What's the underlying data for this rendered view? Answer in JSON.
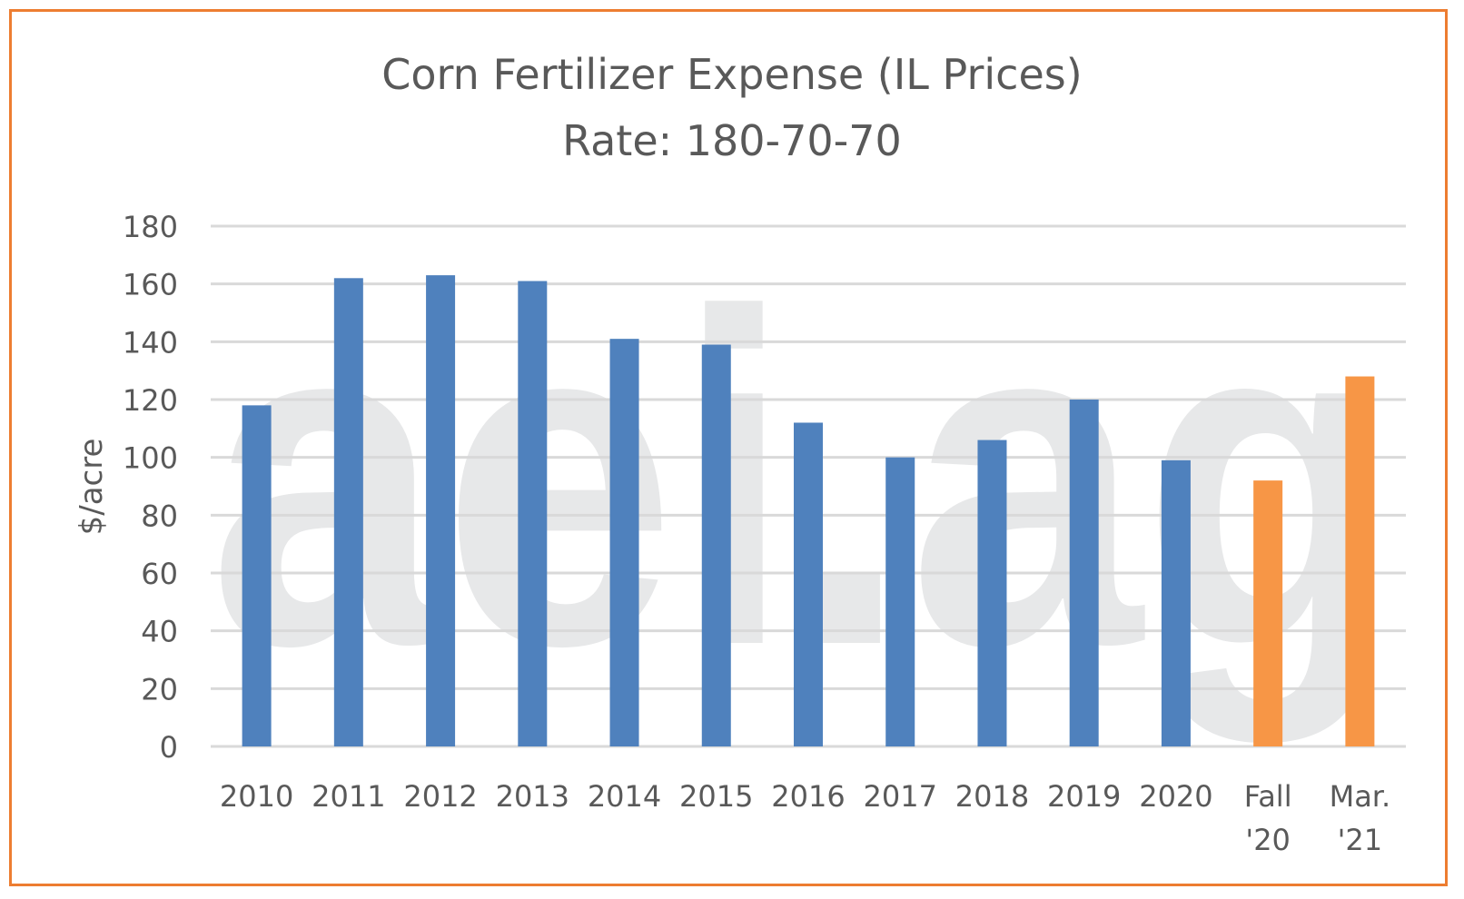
{
  "chart_data": {
    "type": "bar",
    "title": "Corn Fertilizer Expense (IL Prices)",
    "subtitle": "Rate: 180-70-70",
    "xlabel": "",
    "ylabel": "$/acre",
    "ylim": [
      0,
      180
    ],
    "yticks": [
      0,
      20,
      40,
      60,
      80,
      100,
      120,
      140,
      160,
      180
    ],
    "grid": true,
    "legend": "none",
    "categories": [
      "2010",
      "2011",
      "2012",
      "2013",
      "2014",
      "2015",
      "2016",
      "2017",
      "2018",
      "2019",
      "2020",
      "Fall '20",
      "Mar. '21"
    ],
    "category_lines": [
      [
        "2010"
      ],
      [
        "2011"
      ],
      [
        "2012"
      ],
      [
        "2013"
      ],
      [
        "2014"
      ],
      [
        "2015"
      ],
      [
        "2016"
      ],
      [
        "2017"
      ],
      [
        "2018"
      ],
      [
        "2019"
      ],
      [
        "2020"
      ],
      [
        "Fall",
        "'20"
      ],
      [
        "Mar.",
        "'21"
      ]
    ],
    "values": [
      118,
      162,
      163,
      161,
      141,
      139,
      112,
      100,
      106,
      120,
      99,
      92,
      128
    ],
    "bar_colors": [
      "#4F81BD",
      "#4F81BD",
      "#4F81BD",
      "#4F81BD",
      "#4F81BD",
      "#4F81BD",
      "#4F81BD",
      "#4F81BD",
      "#4F81BD",
      "#4F81BD",
      "#4F81BD",
      "#F79646",
      "#F79646"
    ],
    "watermark": "aei.ag"
  },
  "colors": {
    "border": "#ED7D31",
    "grid": "#D9D9D9",
    "text": "#595959",
    "watermark": "#E7E8E9"
  }
}
